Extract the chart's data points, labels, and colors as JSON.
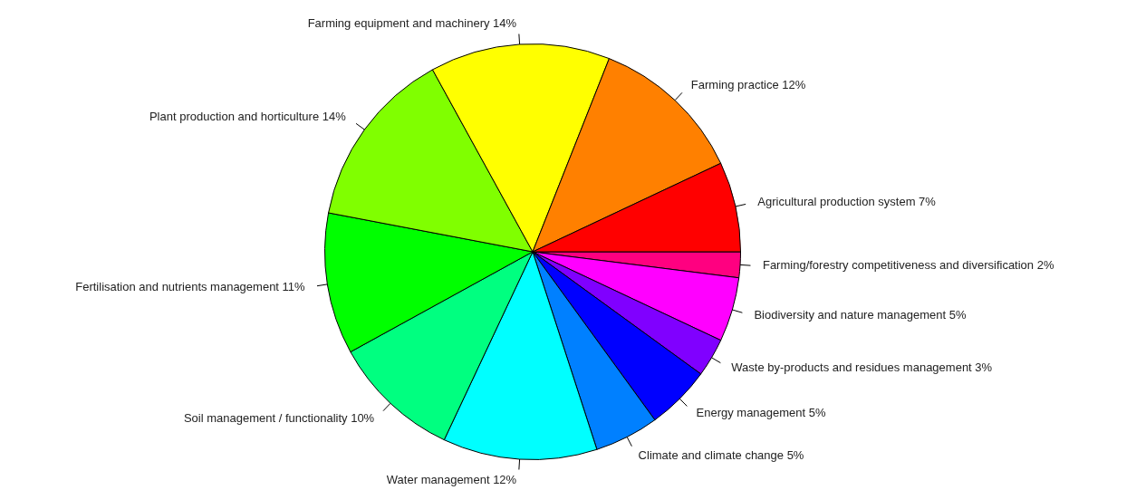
{
  "chart_data": {
    "type": "pie",
    "categories": [
      "Agricultural production system",
      "Farming practice",
      "Farming equipment and machinery",
      "Plant production and horticulture",
      "Fertilisation and nutrients management",
      "Soil management / functionality",
      "Water management",
      "Climate and climate change",
      "Energy management",
      "Waste by-products and residues management",
      "Biodiversity and nature management",
      "Farming/forestry competitiveness and diversification"
    ],
    "values": [
      7,
      12,
      14,
      14,
      11,
      10,
      12,
      5,
      5,
      3,
      5,
      2
    ],
    "value_labels": [
      "7%",
      "12%",
      "14%",
      "14%",
      "11%",
      "10%",
      "12%",
      "5%",
      "5%",
      "3%",
      "5%",
      "2%"
    ],
    "colors": [
      "#ff0000",
      "#ff8000",
      "#ffff00",
      "#80ff00",
      "#00ff00",
      "#00ff80",
      "#00ffff",
      "#0080ff",
      "#0000ff",
      "#8000ff",
      "#ff00ff",
      "#ff0080"
    ],
    "legend": false
  }
}
